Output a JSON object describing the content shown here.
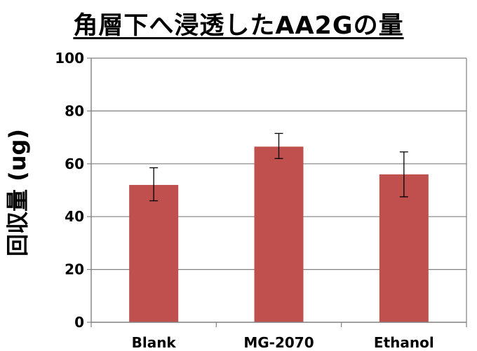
{
  "chart_data": {
    "type": "bar",
    "title": "角層下へ浸透したAA2Gの量",
    "xlabel": "",
    "ylabel": "回収量 (ug)",
    "ylim": [
      0,
      100
    ],
    "yticks": [
      0,
      20,
      40,
      60,
      80,
      100
    ],
    "grid": true,
    "legend": "none",
    "categories": [
      "Blank",
      "MG-2070",
      "Ethanol"
    ],
    "series": [
      {
        "values": [
          52,
          66.5,
          56
        ],
        "error_low": [
          46,
          62,
          47.5
        ],
        "error_high": [
          58.5,
          71.5,
          64.5
        ],
        "color": "#c0504d"
      }
    ],
    "colors": {
      "bar": "#c0504d",
      "grid": "#808080",
      "axis": "#808080"
    }
  }
}
